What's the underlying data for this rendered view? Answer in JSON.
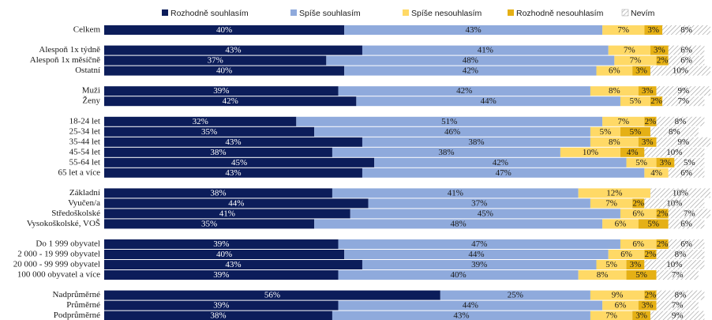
{
  "chart_data": {
    "type": "stacked-bar-horizontal",
    "categories": [
      "Celkem",
      "Alespoň 1x týdně",
      "Alespoň 1x měsíčně",
      "Ostatní",
      "Muži",
      "Ženy",
      "18-24 let",
      "25-34 let",
      "35-44 let",
      "45-54 let",
      "55-64 let",
      "65 let a více",
      "Základní",
      "Vyučen/a",
      "Středoškolské",
      "Vysokoškolské, VOŠ",
      "Do 1 999 obyvatel",
      "2 000 - 19 999 obyvatel",
      "20 000 - 99 999 obyvatel",
      "100 000 obyvatel a více",
      "Nadprůměrné",
      "Průměrné",
      "Podprůměrné"
    ],
    "xlim": [
      0,
      101
    ],
    "series": [
      {
        "name": "Rozhodně souhlasím",
        "color": "#0c1d5a",
        "label_color": "#ffffff",
        "values": [
          40,
          43,
          37,
          40,
          39,
          42,
          32,
          35,
          43,
          38,
          45,
          43,
          38,
          44,
          41,
          35,
          39,
          40,
          43,
          39,
          56,
          39,
          38
        ],
        "value_labels": [
          "40%",
          "43%",
          "37%",
          "40%",
          "39%",
          "42%",
          "32%",
          "35%",
          "43%",
          "38%",
          "45%",
          "43%",
          "38%",
          "44%",
          "41%",
          "35%",
          "39%",
          "40%",
          "43%",
          "39%",
          "56%",
          "39%",
          "38%"
        ]
      },
      {
        "name": "Spíše souhlasím",
        "color": "#8faadc",
        "label_color": "#1a1a1a",
        "values": [
          43,
          41,
          48,
          42,
          42,
          44,
          51,
          46,
          38,
          38,
          42,
          47,
          41,
          37,
          45,
          48,
          47,
          44,
          39,
          40,
          25,
          44,
          43
        ],
        "value_labels": [
          "43%",
          "41%",
          "48%",
          "42%",
          "42%",
          "44%",
          "51%",
          "46%",
          "38%",
          "38%",
          "42%",
          "47%",
          "41%",
          "37%",
          "45%",
          "48%",
          "47%",
          "44%",
          "39%",
          "40%",
          "25%",
          "44%",
          "43%"
        ]
      },
      {
        "name": "Spíše nesouhlasím",
        "color": "#ffd966",
        "label_color": "#1a1a1a",
        "values": [
          7,
          7,
          7,
          6,
          8,
          5,
          7,
          5,
          8,
          10,
          5,
          4,
          12,
          7,
          6,
          6,
          6,
          6,
          5,
          8,
          9,
          6,
          7
        ],
        "value_labels": [
          "7%",
          "7%",
          "7%",
          "6%",
          "8%",
          "5%",
          "7%",
          "5%",
          "8%",
          "10%",
          "5%",
          "4%",
          "12%",
          "7%",
          "6%",
          "6%",
          "6%",
          "6%",
          "5%",
          "8%",
          "9%",
          "6%",
          "7%"
        ]
      },
      {
        "name": "Rozhodně nesouhlasím",
        "color": "#e5b015",
        "label_color": "#1a1a1a",
        "values": [
          3,
          3,
          2,
          3,
          3,
          2,
          2,
          5,
          3,
          4,
          3,
          null,
          null,
          2,
          2,
          5,
          2,
          2,
          3,
          5,
          2,
          3,
          3
        ],
        "value_labels": [
          "3%",
          "3%",
          "2%",
          "3%",
          "3%",
          "2%",
          "2%",
          "5%",
          "3%",
          "4%",
          "3%",
          null,
          null,
          "2%",
          "2%",
          "5%",
          "2%",
          "2%",
          "3%",
          "5%",
          "2%",
          "3%",
          "3%"
        ]
      },
      {
        "name": "Nevím",
        "color": "#9a9a9a",
        "hatch": true,
        "label_color": "#1a1a1a",
        "values": [
          8,
          6,
          6,
          10,
          9,
          7,
          8,
          8,
          9,
          10,
          5,
          6,
          10,
          10,
          7,
          6,
          6,
          8,
          10,
          7,
          8,
          7,
          9
        ],
        "value_labels": [
          "8%",
          "6%",
          "6%",
          "10%",
          "9%",
          "7%",
          "8%",
          "8%",
          "9%",
          "10%",
          "5%",
          "6%",
          "10%",
          "10%",
          "7%",
          "6%",
          "6%",
          "8%",
          "10%",
          "7%",
          "8%",
          "7%",
          "9%"
        ]
      }
    ]
  }
}
